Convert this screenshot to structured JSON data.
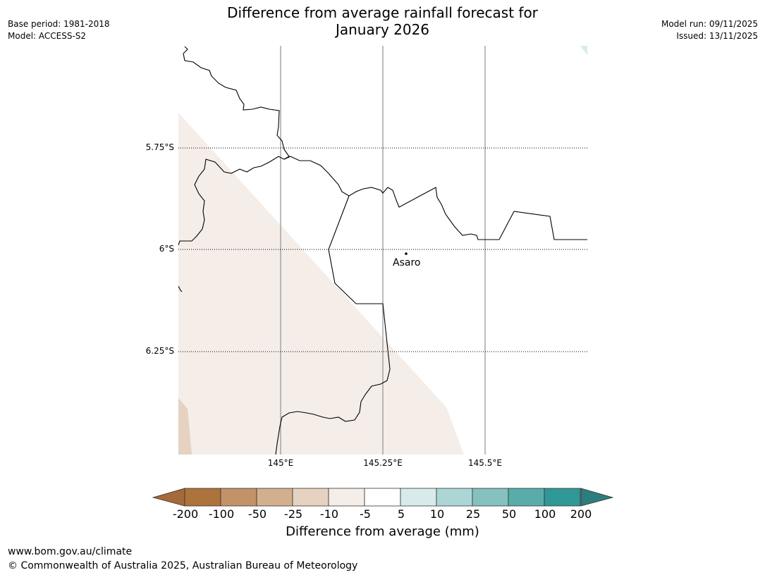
{
  "title": {
    "line1": "Difference from average rainfall forecast for",
    "line2": "January 2026"
  },
  "meta_left": {
    "base_period": "Base period: 1981-2018",
    "model": "Model: ACCESS-S2"
  },
  "meta_right": {
    "model_run": "Model run: 09/11/2025",
    "issued": "Issued: 13/11/2025"
  },
  "map": {
    "latitude_labels": [
      "5.75°S",
      "6°S",
      "6.25°S"
    ],
    "longitude_labels": [
      "145°E",
      "145.25°E",
      "145.5°E"
    ],
    "places": [
      {
        "name": "Asaro"
      }
    ],
    "shading": [
      {
        "category": "-10 to -5",
        "color": "#f5ede8"
      },
      {
        "category": "-25 to -10",
        "color": "#e6d2c0"
      },
      {
        "category": "5 to 10",
        "color": "#d7ebeb"
      }
    ]
  },
  "colorbar": {
    "ticks": [
      "-200",
      "-100",
      "-50",
      "-25",
      "-10",
      "-5",
      "5",
      "10",
      "25",
      "50",
      "100",
      "200"
    ],
    "colors": [
      "#a5693a",
      "#ad733c",
      "#c29268",
      "#d2b08e",
      "#e6d2c0",
      "#f5ede8",
      "#ffffff",
      "#d7ebeb",
      "#acd6d6",
      "#85c1bf",
      "#5aacab",
      "#309897",
      "#2e7d7d"
    ],
    "label": "Difference from average (mm)"
  },
  "footer": {
    "url": "www.bom.gov.au/climate",
    "copyright": "© Commonwealth of Australia 2025, Australian Bureau of Meteorology"
  }
}
